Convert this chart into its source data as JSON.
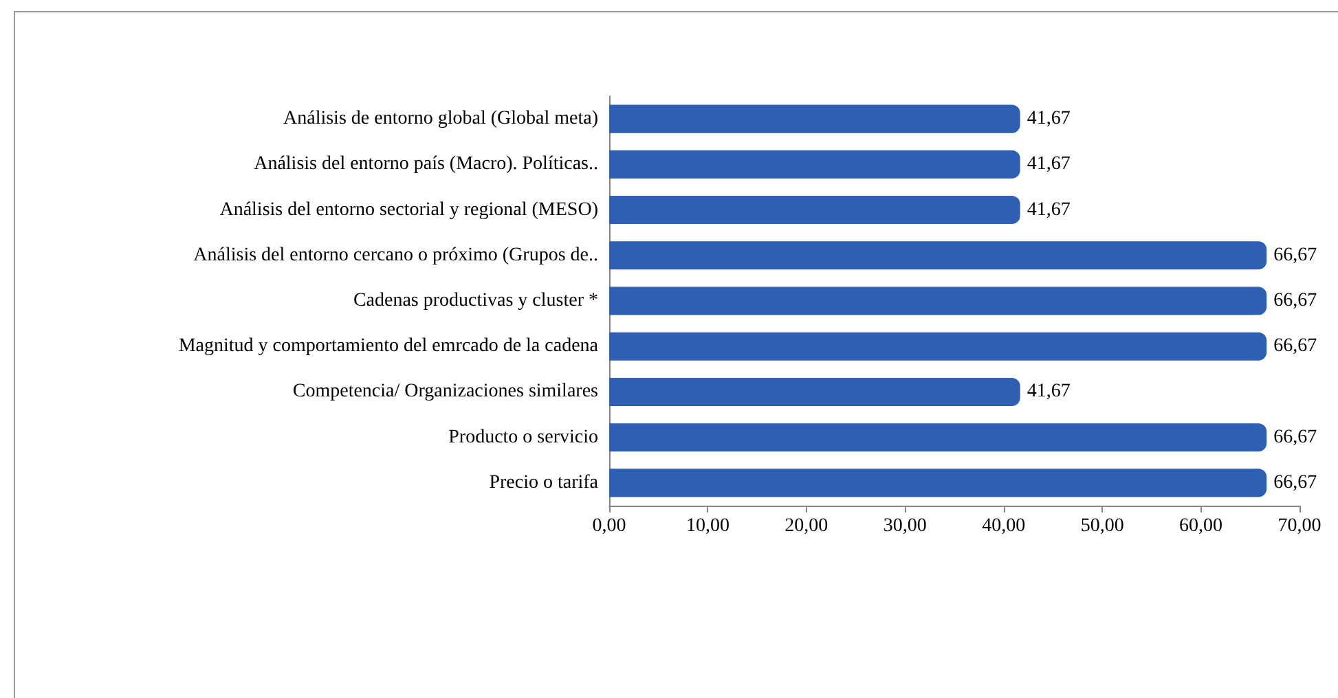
{
  "chart_data": {
    "type": "bar",
    "orientation": "horizontal",
    "categories": [
      "Análisis de entorno global (Global meta)",
      "Análisis del entorno país (Macro). Políticas..",
      "Análisis del entorno sectorial y regional (MESO)",
      "Análisis del entorno cercano o próximo (Grupos de..",
      "Cadenas productivas y cluster *",
      "Magnitud y comportamiento del emrcado de la cadena",
      "Competencia/ Organizaciones similares",
      "Producto o servicio",
      "Precio o tarifa"
    ],
    "values": [
      41.67,
      41.67,
      41.67,
      66.67,
      66.67,
      66.67,
      41.67,
      66.67,
      66.67
    ],
    "value_labels": [
      "41,67",
      "41,67",
      "41,67",
      "66,67",
      "66,67",
      "66,67",
      "41,67",
      "66,67",
      "66,67"
    ],
    "color": "#2f5fb3",
    "xlim": [
      0,
      70
    ],
    "xticks": [
      {
        "value": 0,
        "label": "0,00"
      },
      {
        "value": 10,
        "label": "10,00"
      },
      {
        "value": 20,
        "label": "20,00"
      },
      {
        "value": 30,
        "label": "30,00"
      },
      {
        "value": 40,
        "label": "40,00"
      },
      {
        "value": 50,
        "label": "50,00"
      },
      {
        "value": 60,
        "label": "60,00"
      },
      {
        "value": 70,
        "label": "70,00"
      }
    ],
    "grid": false
  }
}
